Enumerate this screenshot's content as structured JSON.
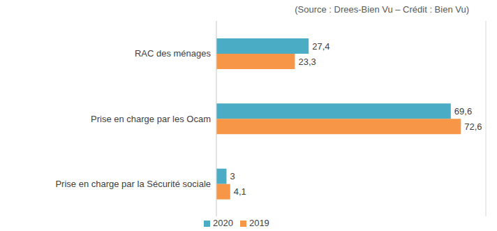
{
  "chart_data": {
    "type": "bar",
    "orientation": "horizontal",
    "subtitle": "(Source : Drees-Bien Vu – Crédit : Bien Vu)",
    "categories": [
      "RAC des ménages",
      "Prise en charge par les Ocam",
      "Prise en charge par la Sécurité sociale"
    ],
    "series": [
      {
        "name": "2020",
        "color": "#4bacc6",
        "values": [
          27.4,
          69.6,
          3
        ],
        "value_labels": [
          "27,4",
          "69,6",
          "3"
        ]
      },
      {
        "name": "2019",
        "color": "#f79646",
        "values": [
          23.3,
          72.6,
          4.1
        ],
        "value_labels": [
          "23,3",
          "72,6",
          "4,1"
        ]
      }
    ],
    "xlim": [
      0,
      80
    ],
    "xticks": [
      0,
      20,
      40,
      60,
      80
    ],
    "grid": true,
    "data_labels": true,
    "tick_labels": "y",
    "legend": "bottom"
  }
}
